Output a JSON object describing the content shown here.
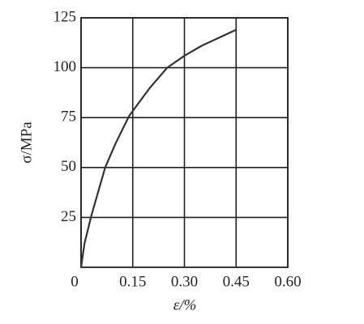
{
  "chart_data": {
    "type": "line",
    "xlabel": "ε/%",
    "ylabel": "σ/MPa",
    "x": [
      0,
      0.01,
      0.03,
      0.07,
      0.1,
      0.14,
      0.2,
      0.25,
      0.3,
      0.35,
      0.4,
      0.45
    ],
    "series": [
      {
        "color": "#333333",
        "values": [
          0,
          12,
          26,
          50,
          62,
          76,
          90,
          100,
          106,
          111,
          115,
          119
        ]
      }
    ],
    "xlim": [
      0,
      0.6
    ],
    "xticks": [
      0,
      0.15,
      {
        "value": 0.3,
        "label": "0.30"
      },
      0.45,
      {
        "value": 0.6,
        "label": "0.60"
      }
    ],
    "ylim": [
      0,
      125
    ],
    "yticks": [
      25,
      50,
      75,
      100,
      125
    ],
    "grid": true
  }
}
